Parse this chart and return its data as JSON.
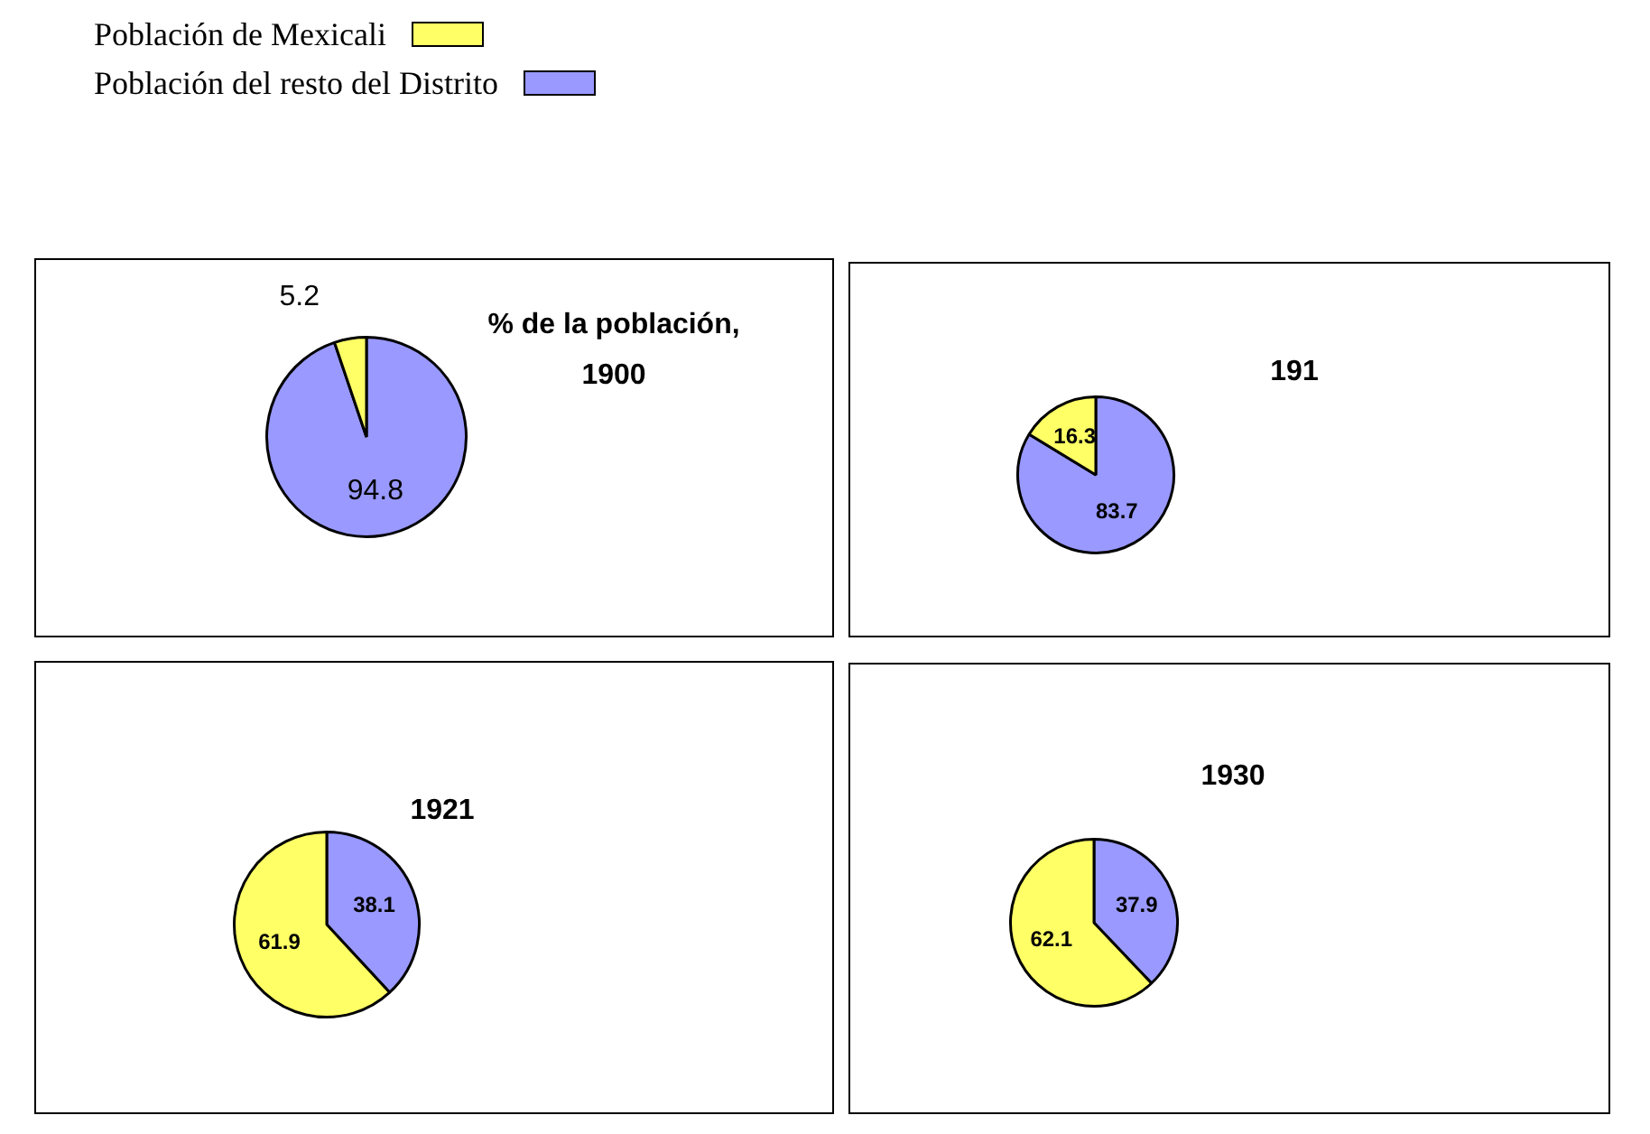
{
  "chart_data": [
    {
      "type": "pie",
      "title": "% de la población, 1900",
      "categories": [
        "Población de Mexicali",
        "Población del resto del Distrito"
      ],
      "values": [
        5.2,
        94.8
      ],
      "colors": [
        "#ffff66",
        "#9999ff"
      ],
      "data_labels": true,
      "legend": "top left"
    },
    {
      "type": "pie",
      "title": "191",
      "categories": [
        null,
        null
      ],
      "values": [
        16.3,
        83.7
      ],
      "colors": [
        "#ffff66",
        "#9999ff"
      ],
      "data_labels": true
    },
    {
      "type": "pie",
      "title": "1921",
      "categories": [
        null,
        null
      ],
      "values": [
        61.9,
        38.1
      ],
      "colors": [
        "#ffff66",
        "#9999ff"
      ],
      "data_labels": true
    },
    {
      "type": "pie",
      "title": "1930",
      "categories": [
        null,
        null
      ],
      "values": [
        62.1,
        37.9
      ],
      "colors": [
        "#ffff66",
        "#9999ff"
      ],
      "data_labels": true
    }
  ]
}
